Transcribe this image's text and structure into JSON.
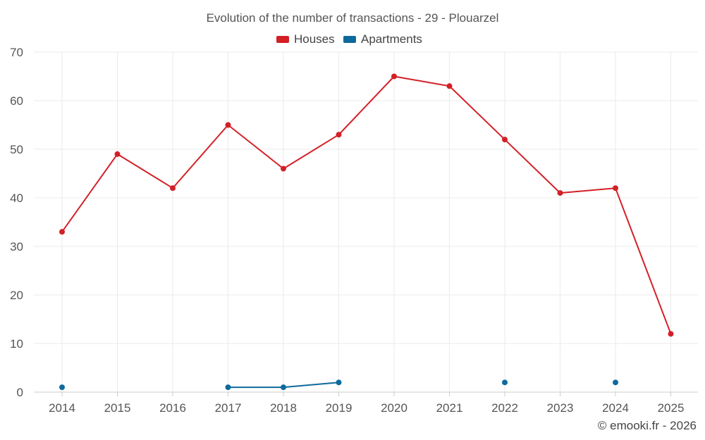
{
  "chart_data": {
    "type": "line",
    "title": "Evolution of the number of transactions - 29 - Plouarzel",
    "x": [
      2014,
      2015,
      2016,
      2017,
      2018,
      2019,
      2020,
      2021,
      2022,
      2023,
      2024,
      2025
    ],
    "series": [
      {
        "name": "Houses",
        "color": "#d32027",
        "values": [
          33,
          49,
          42,
          55,
          46,
          53,
          65,
          63,
          52,
          41,
          42,
          12
        ]
      },
      {
        "name": "Apartments",
        "color": "#0e6a9c",
        "values": [
          1,
          null,
          null,
          1,
          1,
          2,
          null,
          null,
          2,
          null,
          2,
          null
        ]
      }
    ],
    "ylim": [
      0,
      70
    ],
    "yticks": [
      0,
      10,
      20,
      30,
      40,
      50,
      60,
      70
    ],
    "grid": true,
    "legend_position": "top-center",
    "credit": "© emooki.fr - 2026"
  }
}
